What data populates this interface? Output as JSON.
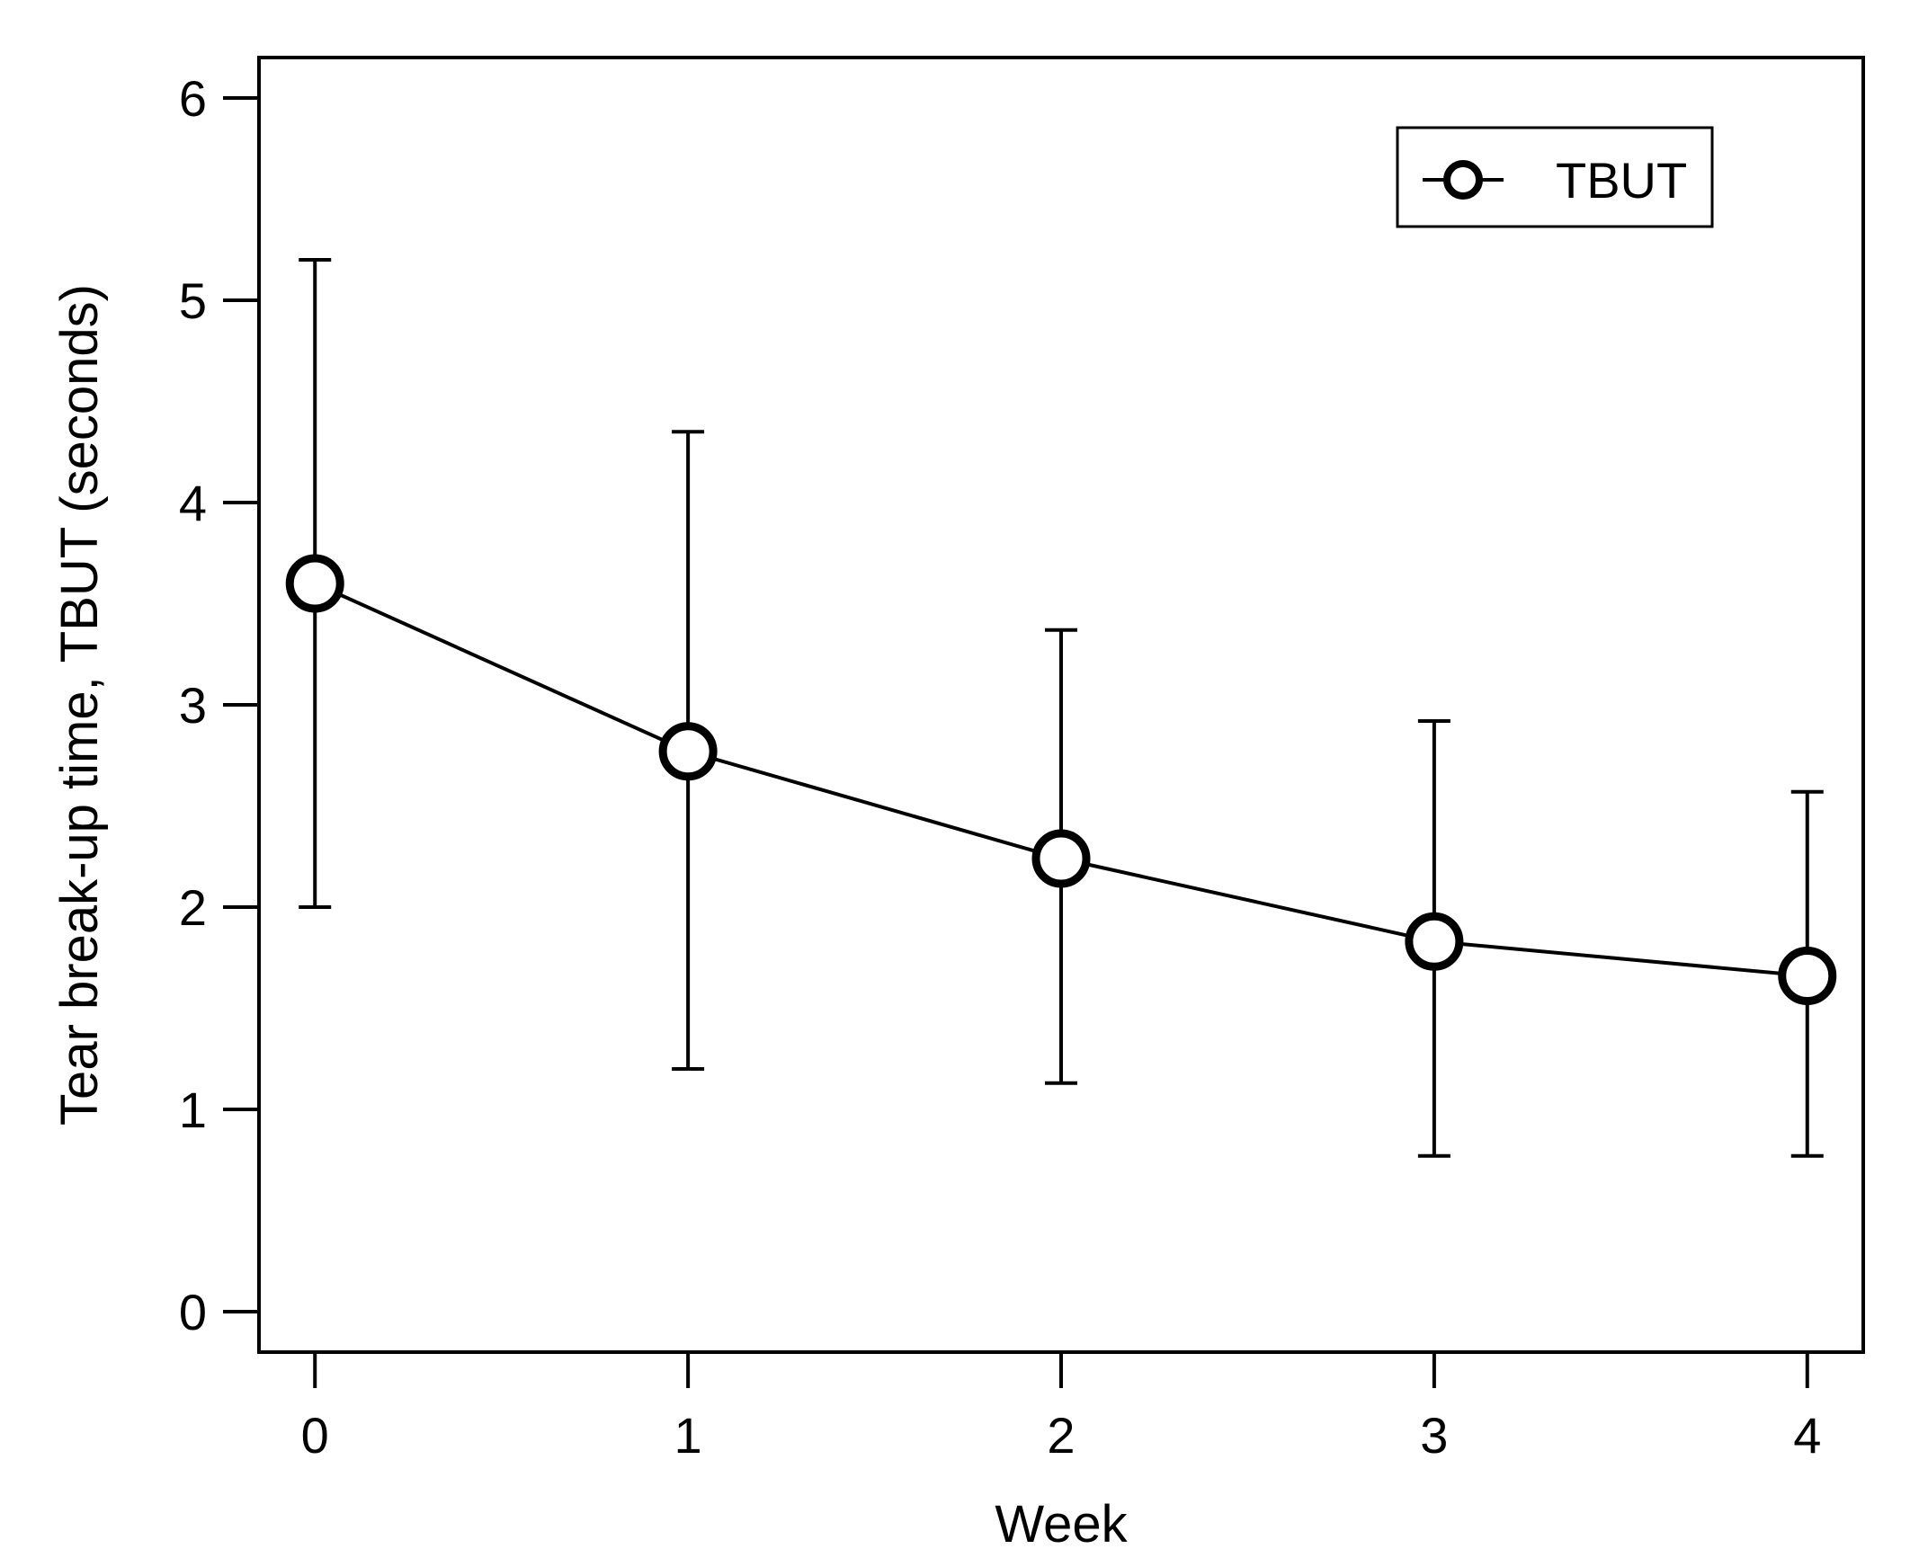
{
  "chart_data": {
    "type": "line",
    "title": "",
    "xlabel": "Week",
    "ylabel": "Tear break-up time, TBUT (seconds)",
    "x": [
      0,
      1,
      2,
      3,
      4
    ],
    "xticks": [
      "0",
      "1",
      "2",
      "3",
      "4"
    ],
    "yticks": [
      "0",
      "1",
      "2",
      "3",
      "4",
      "5",
      "6"
    ],
    "xlim": [
      -0.15,
      4.15
    ],
    "ylim": [
      -0.2,
      6.2
    ],
    "grid": false,
    "legend_position": "top-right",
    "series": [
      {
        "name": "TBUT",
        "values": [
          3.6,
          2.77,
          2.24,
          1.83,
          1.66
        ],
        "error_upper": [
          5.2,
          4.35,
          3.37,
          2.92,
          2.57
        ],
        "error_lower": [
          2.0,
          1.2,
          1.13,
          0.77,
          0.77
        ],
        "marker": "open-circle",
        "color": "#000000"
      }
    ]
  }
}
